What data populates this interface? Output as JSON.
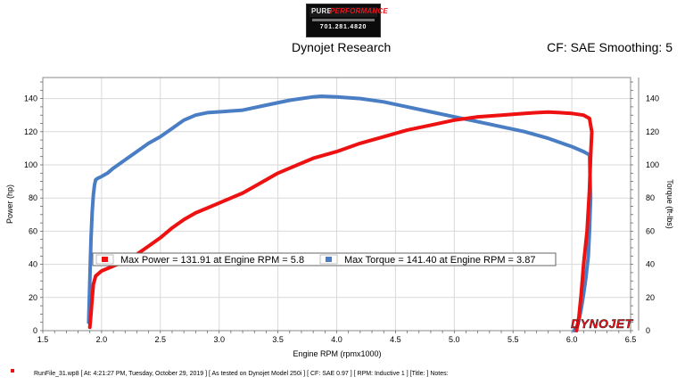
{
  "header": {
    "logo_text": [
      "PURE",
      "PERFORMANCE"
    ],
    "logo_phone": "701.281.4820",
    "title": "Dynojet Research",
    "cf_smoothing": "CF: SAE Smoothing: 5"
  },
  "brand_watermark": "DYNOJET",
  "footer": {
    "text": "RunFile_31.wp8 [ At: 4:21:27 PM, Tuesday, October 29, 2019 ] [ As tested on Dynojet Model 250i ] [ CF: SAE 0.97 ] [ RPM: Inductive 1 ] [Title: ]   Notes:"
  },
  "colors": {
    "power": "#ee1111",
    "torque": "#4a7ec4",
    "grid": "#d9d9d9"
  },
  "chart_data": {
    "type": "line",
    "xlabel": "Engine RPM (rpmx1000)",
    "ylabel_left": "Power (hp)",
    "ylabel_right": "Torque (ft-lbs)",
    "xlim": [
      1.5,
      6.5
    ],
    "ylim": [
      0,
      150
    ],
    "x_ticks": [
      "1.5",
      "2.0",
      "2.5",
      "3.0",
      "3.5",
      "4.0",
      "4.5",
      "5.0",
      "5.5",
      "6.0",
      "6.5"
    ],
    "y_ticks": [
      "0",
      "20",
      "40",
      "60",
      "80",
      "100",
      "120",
      "140"
    ],
    "y_ticks_right": [
      "0",
      "20",
      "40",
      "60",
      "80",
      "100",
      "120",
      "140"
    ],
    "grid": true,
    "legend": [
      {
        "series": "power",
        "text": "Max Power = 131.91 at Engine RPM = 5.8"
      },
      {
        "series": "torque",
        "text": "Max Torque = 141.40 at Engine RPM = 3.87"
      }
    ],
    "series": [
      {
        "key": "power",
        "x": [
          1.9,
          1.91,
          1.92,
          1.93,
          1.95,
          2.0,
          2.1,
          2.2,
          2.3,
          2.4,
          2.5,
          2.6,
          2.7,
          2.8,
          2.9,
          3.0,
          3.1,
          3.2,
          3.3,
          3.4,
          3.5,
          3.6,
          3.7,
          3.8,
          3.9,
          4.0,
          4.2,
          4.4,
          4.6,
          4.8,
          5.0,
          5.2,
          5.4,
          5.5,
          5.6,
          5.7,
          5.8,
          5.9,
          6.0,
          6.1,
          6.15,
          6.17,
          6.16,
          6.15,
          6.13,
          6.1,
          6.08,
          6.06,
          6.04
        ],
        "y": [
          2,
          10,
          20,
          28,
          33,
          36,
          39,
          42,
          46,
          51,
          56,
          62,
          67,
          71,
          74,
          77,
          80,
          83,
          87,
          91,
          95,
          98,
          101,
          104,
          106,
          108,
          113,
          117,
          121,
          124,
          127,
          129,
          130,
          130.5,
          131,
          131.5,
          131.9,
          131.5,
          131,
          130,
          128,
          120,
          105,
          85,
          60,
          40,
          22,
          8,
          0
        ]
      },
      {
        "key": "torque",
        "x": [
          1.89,
          1.9,
          1.91,
          1.92,
          1.93,
          1.94,
          1.95,
          1.97,
          2.0,
          2.05,
          2.1,
          2.2,
          2.3,
          2.4,
          2.5,
          2.6,
          2.7,
          2.8,
          2.9,
          3.0,
          3.2,
          3.4,
          3.6,
          3.8,
          3.87,
          4.0,
          4.2,
          4.4,
          4.6,
          4.8,
          5.0,
          5.2,
          5.4,
          5.6,
          5.8,
          6.0,
          6.1,
          6.15,
          6.16,
          6.15,
          6.14,
          6.12,
          6.1,
          6.08,
          6.06,
          6.04,
          6.02
        ],
        "y": [
          5,
          30,
          55,
          72,
          82,
          88,
          91,
          92,
          93,
          95,
          98,
          103,
          108,
          113,
          117,
          122,
          127,
          130,
          131.5,
          132,
          133,
          136,
          139,
          141,
          141.4,
          141,
          140,
          138,
          135,
          132,
          129,
          126,
          123,
          120,
          116,
          111,
          108,
          106,
          80,
          60,
          45,
          32,
          22,
          13,
          6,
          2,
          0
        ]
      }
    ]
  }
}
